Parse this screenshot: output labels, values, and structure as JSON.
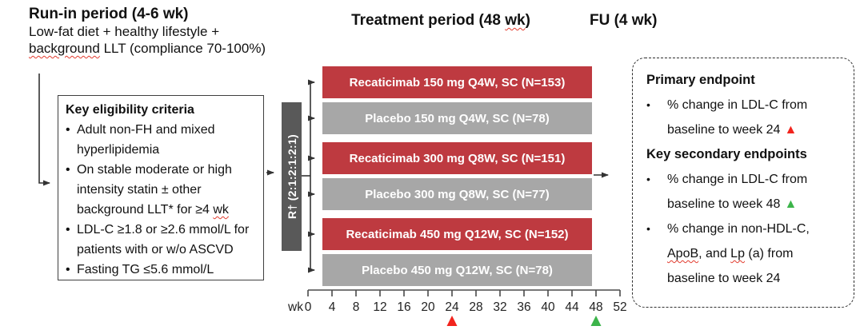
{
  "header": {
    "runin_title": "Run-in period (4-6 wk)",
    "runin_sub1": "Low-fat diet + healthy lifestyle +",
    "runin_sub2": "background LLT (compliance 70-100%)",
    "treatment_title": "Treatment period (48 wk)",
    "fu_title": "FU (4 wk)"
  },
  "eligibility": {
    "title": "Key eligibility criteria",
    "items": [
      {
        "lines": [
          "Adult non-FH and mixed",
          "hyperlipidemia"
        ]
      },
      {
        "lines": [
          "On stable moderate or high",
          "intensity statin ± other",
          "background LLT* for ≥4 wk"
        ],
        "squiggle_words": [
          "wk"
        ]
      },
      {
        "lines": [
          "LDL-C ≥1.8 or ≥2.6 mmol/L for",
          "patients with or w/o ASCVD"
        ]
      },
      {
        "lines": [
          "Fasting TG ≤5.6 mmol/L"
        ]
      }
    ]
  },
  "randomization": {
    "label": "R† (2:1:2:1:2:1)"
  },
  "arms": [
    {
      "label": "Recaticimab 150 mg Q4W, SC (N=153)",
      "type": "drug"
    },
    {
      "label": "Placebo 150 mg Q4W, SC (N=78)",
      "type": "placebo"
    },
    {
      "label": "Recaticimab 300 mg Q8W, SC (N=151)",
      "type": "drug"
    },
    {
      "label": "Placebo 300 mg Q8W, SC (N=77)",
      "type": "placebo"
    },
    {
      "label": "Recaticimab 450 mg Q12W, SC (N=152)",
      "type": "drug"
    },
    {
      "label": "Placebo 450 mg Q12W, SC (N=78)",
      "type": "placebo"
    }
  ],
  "axis": {
    "unit_label": "wk",
    "ticks": [
      0,
      4,
      8,
      12,
      16,
      20,
      24,
      28,
      32,
      36,
      40,
      44,
      48,
      52
    ],
    "markers": [
      {
        "week": 24,
        "color_key": "marker_red",
        "name": "week-24-primary-marker"
      },
      {
        "week": 48,
        "color_key": "marker_green",
        "name": "week-48-secondary-marker"
      }
    ]
  },
  "endpoints": {
    "primary_title": "Primary endpoint",
    "primary_items": [
      {
        "lines": [
          "% change in LDL-C from",
          "baseline to week 24"
        ],
        "marker": "marker_red"
      }
    ],
    "secondary_title": "Key secondary endpoints",
    "secondary_items": [
      {
        "lines": [
          "% change in LDL-C from",
          "baseline to week 48"
        ],
        "marker": "marker_green"
      },
      {
        "lines": [
          "% change in non-HDL-C,",
          "ApoB, and Lp (a) from",
          "baseline to week 24"
        ],
        "squiggle_words": [
          "ApoB",
          "Lp"
        ]
      }
    ]
  },
  "colors": {
    "drug_bar": "#be3a40",
    "placebo_bar": "#a7a7a7",
    "randomization_bar": "#595959",
    "marker_red": "#f2241d",
    "marker_green": "#3cb44a",
    "connector": "#333333"
  }
}
